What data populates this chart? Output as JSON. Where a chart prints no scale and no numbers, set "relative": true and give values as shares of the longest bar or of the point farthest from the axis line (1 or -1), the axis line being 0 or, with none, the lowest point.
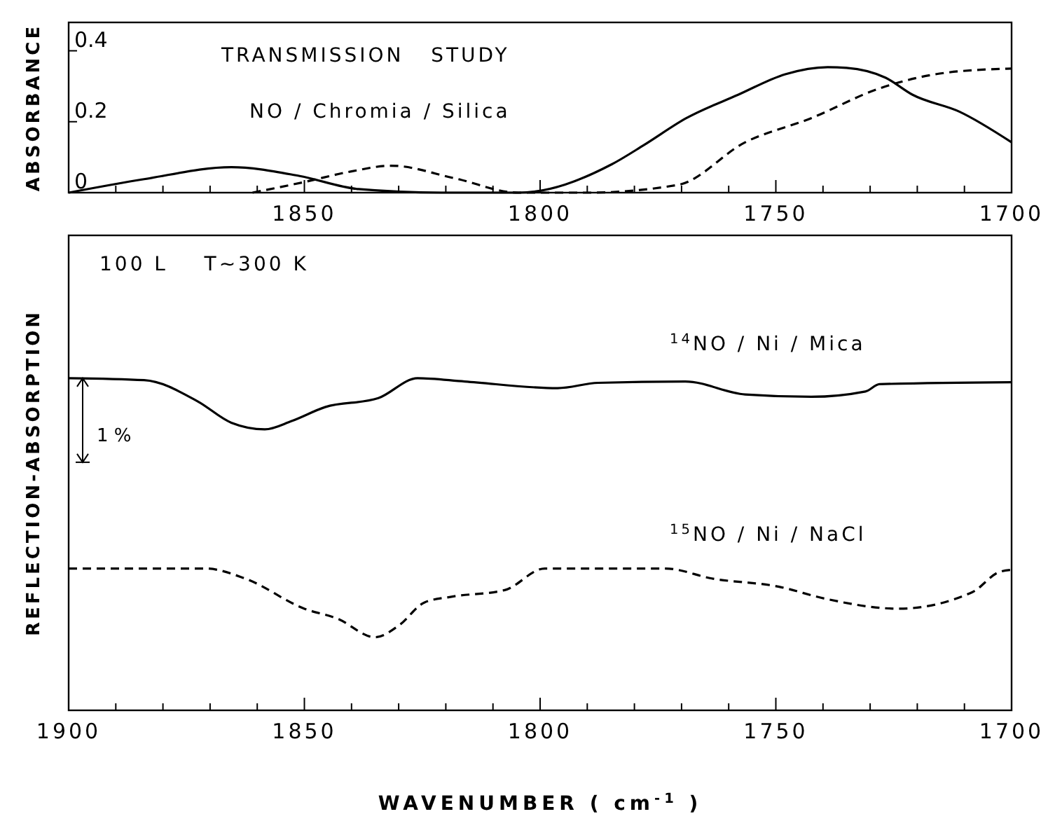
{
  "chart_data": [
    {
      "type": "line",
      "ylabel": "ABSORBANCE",
      "annotations": [
        "TRANSMISSION   STUDY",
        "NO / Chromia / Silica"
      ],
      "xlim": [
        1900,
        1700
      ],
      "ylim": [
        0,
        0.48
      ],
      "xticks": [
        {
          "value": 1900,
          "label": null
        },
        {
          "value": 1890,
          "label": null
        },
        {
          "value": 1880,
          "label": null
        },
        {
          "value": 1870,
          "label": null
        },
        {
          "value": 1860,
          "label": null
        },
        1850,
        {
          "value": 1840,
          "label": null
        },
        {
          "value": 1830,
          "label": null
        },
        {
          "value": 1820,
          "label": null
        },
        {
          "value": 1810,
          "label": null
        },
        1800,
        {
          "value": 1790,
          "label": null
        },
        {
          "value": 1780,
          "label": null
        },
        {
          "value": 1770,
          "label": null
        },
        {
          "value": 1760,
          "label": null
        },
        1750,
        {
          "value": 1740,
          "label": null
        },
        {
          "value": 1730,
          "label": null
        },
        {
          "value": 1720,
          "label": null
        },
        {
          "value": 1710,
          "label": null
        },
        1700
      ],
      "yticks": [
        0,
        0.2,
        0.4
      ],
      "grid": false,
      "marker": "none",
      "series": [
        {
          "color": "#000000",
          "line_style": "solid",
          "x": [
            1900,
            1884,
            1865.5,
            1851,
            1838.5,
            1821,
            1804.6,
            1784.8,
            1778,
            1769,
            1758,
            1748,
            1739,
            1735,
            1726.7,
            1721,
            1711,
            1700
          ],
          "values": [
            0,
            0.038,
            0.072,
            0.047,
            0.01,
            0,
            0,
            0.08,
            0.134,
            0.21,
            0.276,
            0.334,
            0.354,
            0.352,
            0.324,
            0.276,
            0.228,
            0.142
          ]
        },
        {
          "color": "#000000",
          "line_style": "dashed",
          "x": [
            1861,
            1850,
            1840,
            1831.6,
            1818,
            1804.6,
            1790,
            1770.7,
            1756.5,
            1742.5,
            1728,
            1714,
            1700
          ],
          "values": [
            0,
            0.03,
            0.06,
            0.076,
            0.04,
            0,
            0,
            0.022,
            0.142,
            0.21,
            0.294,
            0.338,
            0.35
          ]
        }
      ]
    },
    {
      "type": "line",
      "relative": true,
      "ylabel": "REFLECTION-ABSORPTION",
      "xlabel": "WAVENUMBER   ( cm$^{-1}$ )",
      "annotations": [
        "100 L    T∼300 K",
        "1 %"
      ],
      "xlim": [
        1900,
        1700
      ],
      "xticks": [
        1900,
        {
          "value": 1890,
          "label": null
        },
        {
          "value": 1880,
          "label": null
        },
        {
          "value": 1870,
          "label": null
        },
        {
          "value": 1860,
          "label": null
        },
        1850,
        {
          "value": 1840,
          "label": null
        },
        {
          "value": 1830,
          "label": null
        },
        {
          "value": 1820,
          "label": null
        },
        {
          "value": 1810,
          "label": null
        },
        1800,
        {
          "value": 1790,
          "label": null
        },
        {
          "value": 1780,
          "label": null
        },
        {
          "value": 1770,
          "label": null
        },
        {
          "value": 1760,
          "label": null
        },
        1750,
        {
          "value": 1740,
          "label": null
        },
        {
          "value": 1730,
          "label": null
        },
        {
          "value": 1720,
          "label": null
        },
        {
          "value": 1710,
          "label": null
        },
        1700
      ],
      "grid": false,
      "marker": "none",
      "series": [
        {
          "name": "$^{14}$NO / Ni / Mica",
          "color": "#000000",
          "line_style": "solid",
          "x": [
            1900,
            1884,
            1872.6,
            1865.5,
            1858.4,
            1852.7,
            1845.6,
            1834.3,
            1826,
            1816,
            1796.3,
            1787.7,
            1769.2,
            1756.5,
            1742.5,
            1731,
            1728,
            1700
          ],
          "values": [
            1,
            0.994,
            0.93,
            0.866,
            0.846,
            0.871,
            0.913,
            0.94,
            1,
            0.99,
            0.97,
            0.986,
            0.99,
            0.951,
            0.944,
            0.96,
            0.982,
            0.988
          ]
        },
        {
          "name": "$^{15}$NO / Ni / NaCl",
          "color": "#000000",
          "line_style": "dashed",
          "x": [
            1900,
            1871,
            1862.6,
            1850,
            1843,
            1835,
            1830,
            1824.5,
            1818.8,
            1807.5,
            1799,
            1773.4,
            1763.6,
            1749.3,
            1739.5,
            1724,
            1708.3,
            1702.7,
            1700
          ],
          "values": [
            0.427,
            0.427,
            0.397,
            0.306,
            0.276,
            0.22,
            0.255,
            0.325,
            0.342,
            0.362,
            0.427,
            0.427,
            0.397,
            0.372,
            0.336,
            0.306,
            0.356,
            0.416,
            0.423
          ]
        }
      ]
    }
  ]
}
